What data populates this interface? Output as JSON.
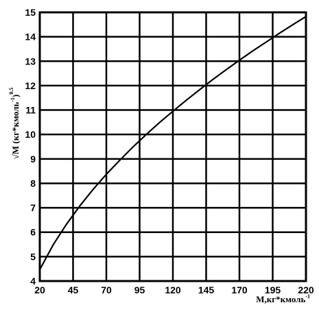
{
  "chart_data": {
    "type": "line",
    "title": "",
    "xlabel": "M,кг*кмоль",
    "xlabel_sup": "-1",
    "ylabel": "√M  (кг*кмоль",
    "ylabel_sup1": "-1",
    "ylabel_close": ")",
    "ylabel_sup2": "0.5",
    "xlim": [
      20,
      220
    ],
    "ylim": [
      4,
      15
    ],
    "x_ticks": [
      20,
      45,
      70,
      95,
      120,
      145,
      170,
      195,
      220
    ],
    "y_ticks": [
      4,
      5,
      6,
      7,
      8,
      9,
      10,
      11,
      12,
      13,
      14,
      15
    ],
    "grid": true,
    "series": [
      {
        "x": [
          20,
          30,
          40,
          50,
          60,
          70,
          80,
          90,
          100,
          110,
          120,
          130,
          140,
          150,
          160,
          170,
          180,
          190,
          200,
          210,
          220
        ],
        "y": [
          4.47,
          5.48,
          6.32,
          7.07,
          7.75,
          8.37,
          8.94,
          9.49,
          10.0,
          10.49,
          10.95,
          11.4,
          11.83,
          12.25,
          12.65,
          13.04,
          13.42,
          13.78,
          14.14,
          14.49,
          14.83
        ],
        "color": "#000000"
      }
    ]
  }
}
